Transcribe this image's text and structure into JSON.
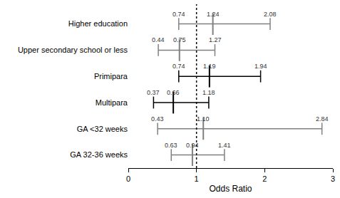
{
  "chart_data": {
    "type": "forest",
    "xlabel": "Odds Ratio",
    "categories": [
      "Higher education",
      "Upper secondary school or less",
      "Primipara",
      "Multipara",
      "GA <32 weeks",
      "GA 32-36 weeks"
    ],
    "values": [
      1.24,
      0.75,
      1.19,
      0.66,
      1.1,
      0.94
    ],
    "value_labels": [
      "1.24",
      "0.75",
      "1.19",
      "0.66",
      "1.10",
      "0.94"
    ],
    "ci_lower": [
      0.74,
      0.44,
      0.74,
      0.37,
      0.43,
      0.63
    ],
    "ci_upper": [
      2.08,
      1.27,
      1.94,
      1.18,
      2.84,
      1.41
    ],
    "colors": [
      "#808080",
      "#808080",
      "#000000",
      "#000000",
      "#808080",
      "#808080"
    ],
    "reference": 1,
    "xlim": [
      0,
      3
    ],
    "xticks": [
      0,
      1,
      2,
      3
    ],
    "data_labels": true,
    "grid": false
  }
}
